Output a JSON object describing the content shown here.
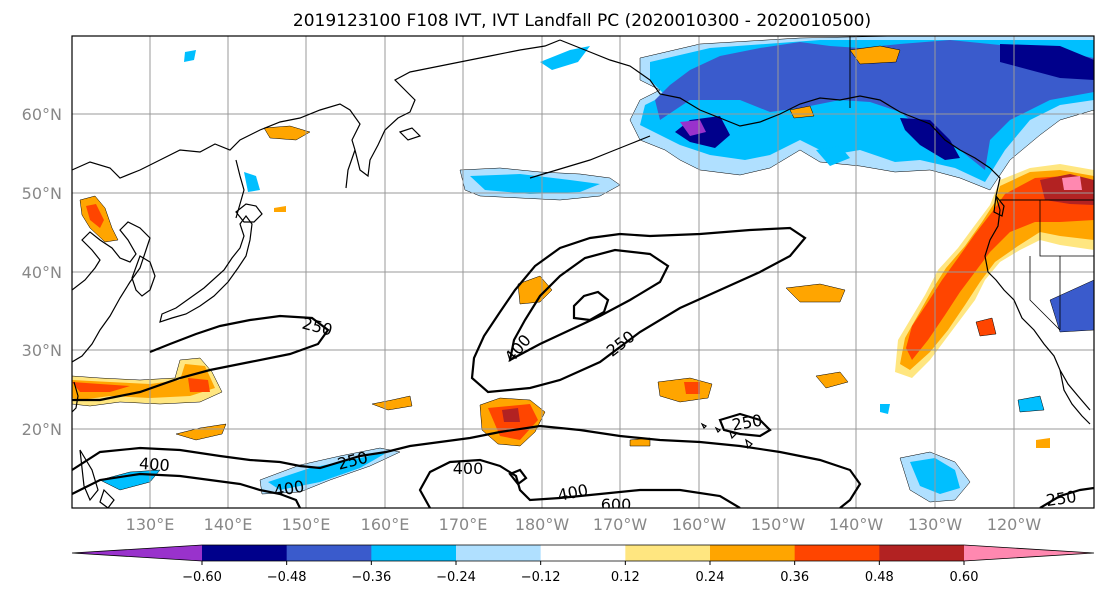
{
  "title": "2019123100 F108 IVT, IVT Landfall PC (2020010300 - 2020010500)",
  "lat_labels": [
    "60°N",
    "50°N",
    "40°N",
    "30°N",
    "20°N"
  ],
  "lon_labels": [
    "130°E",
    "140°E",
    "150°E",
    "160°E",
    "170°E",
    "180°W",
    "170°W",
    "160°W",
    "150°W",
    "140°W",
    "130°W",
    "120°W"
  ],
  "contour_labels": [
    "250",
    "400",
    "250",
    "400",
    "250",
    "400",
    "400",
    "250",
    "400",
    "600",
    "250"
  ],
  "colorbar": {
    "colors": [
      "#9932cc",
      "#00008b",
      "#3a5bcc",
      "#00bfff",
      "#b0e0ff",
      "#ffffff",
      "#ffe680",
      "#ffa500",
      "#ff4500",
      "#b22222",
      "#ff88b0"
    ],
    "tick_labels": [
      "−0.60",
      "−0.48",
      "−0.36",
      "−0.24",
      "−0.12",
      "0.12",
      "0.24",
      "0.36",
      "0.48",
      "0.60"
    ]
  }
}
